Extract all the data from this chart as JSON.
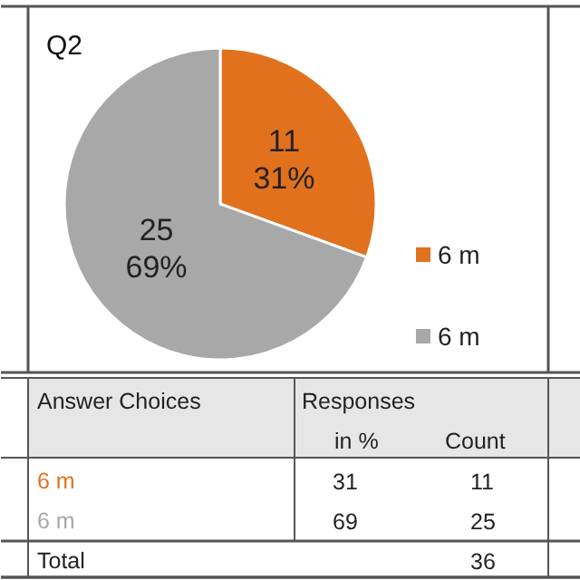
{
  "chart_data": {
    "type": "pie",
    "title": "Q2",
    "categories": [
      "6 m",
      "6 m"
    ],
    "values": [
      11,
      25
    ],
    "colors": [
      "#e2711d",
      "#a8a8a8"
    ],
    "value_labels": [
      "11\n31%",
      "25\n69%"
    ],
    "legend": "right",
    "annotations": [
      "Answer Choices",
      "Responses",
      "in %",
      "Count",
      "31",
      "11",
      "69",
      "25",
      "Total",
      "36"
    ]
  }
}
